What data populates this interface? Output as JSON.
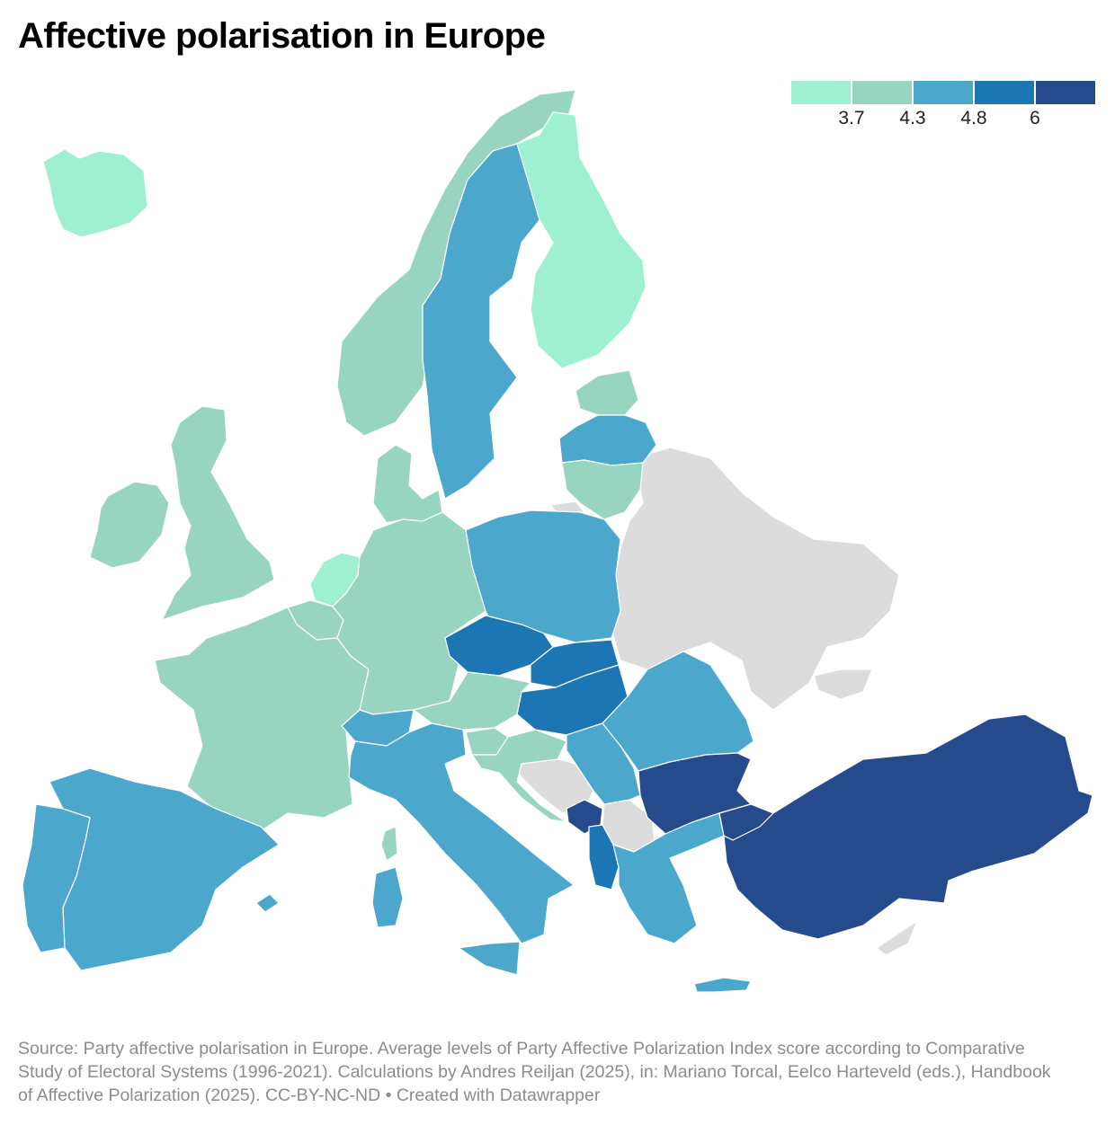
{
  "title": "Affective polarisation in Europe",
  "legend": {
    "colors": [
      "#9ef0d1",
      "#98d5c0",
      "#4ba7cb",
      "#1d76b4",
      "#264b8c"
    ],
    "ticks": [
      "3.7",
      "4.3",
      "4.8",
      "6"
    ]
  },
  "no_data_color": "#dcdcdc",
  "countries": {
    "iceland": "3.7",
    "norway": "4.3",
    "sweden": "4.8",
    "finland": "3.7",
    "estonia": "4.3",
    "latvia": "4.8",
    "lithuania": "4.3",
    "denmark": "4.3",
    "ireland": "4.3",
    "uk": "4.3",
    "netherlands": "3.7",
    "belgium": "4.3",
    "france": "4.3",
    "germany": "4.3",
    "poland": "4.8",
    "czechia": "6",
    "slovakia": "6",
    "hungary": "6",
    "austria": "4.3",
    "switzerland": "4.8",
    "italy": "4.8",
    "slovenia": "4.3",
    "croatia": "4.3",
    "serbia": "4.8",
    "romania": "4.8",
    "bulgaria": "6+",
    "montenegro": "6+",
    "albania": "6",
    "greece": "4.8",
    "turkey": "6+",
    "spain": "4.8",
    "portugal": "4.8"
  },
  "footer": "Source: Party affective polarisation in Europe. Average levels of Party Affective Polarization Index score according to Comparative Study of Electoral Systems (1996-2021). Calculations by Andres Reiljan (2025), in: Mariano Torcal, Eelco Harteveld (eds.), Handbook of Affective Polarization (2025). CC-BY-NC-ND • Created with Datawrapper"
}
